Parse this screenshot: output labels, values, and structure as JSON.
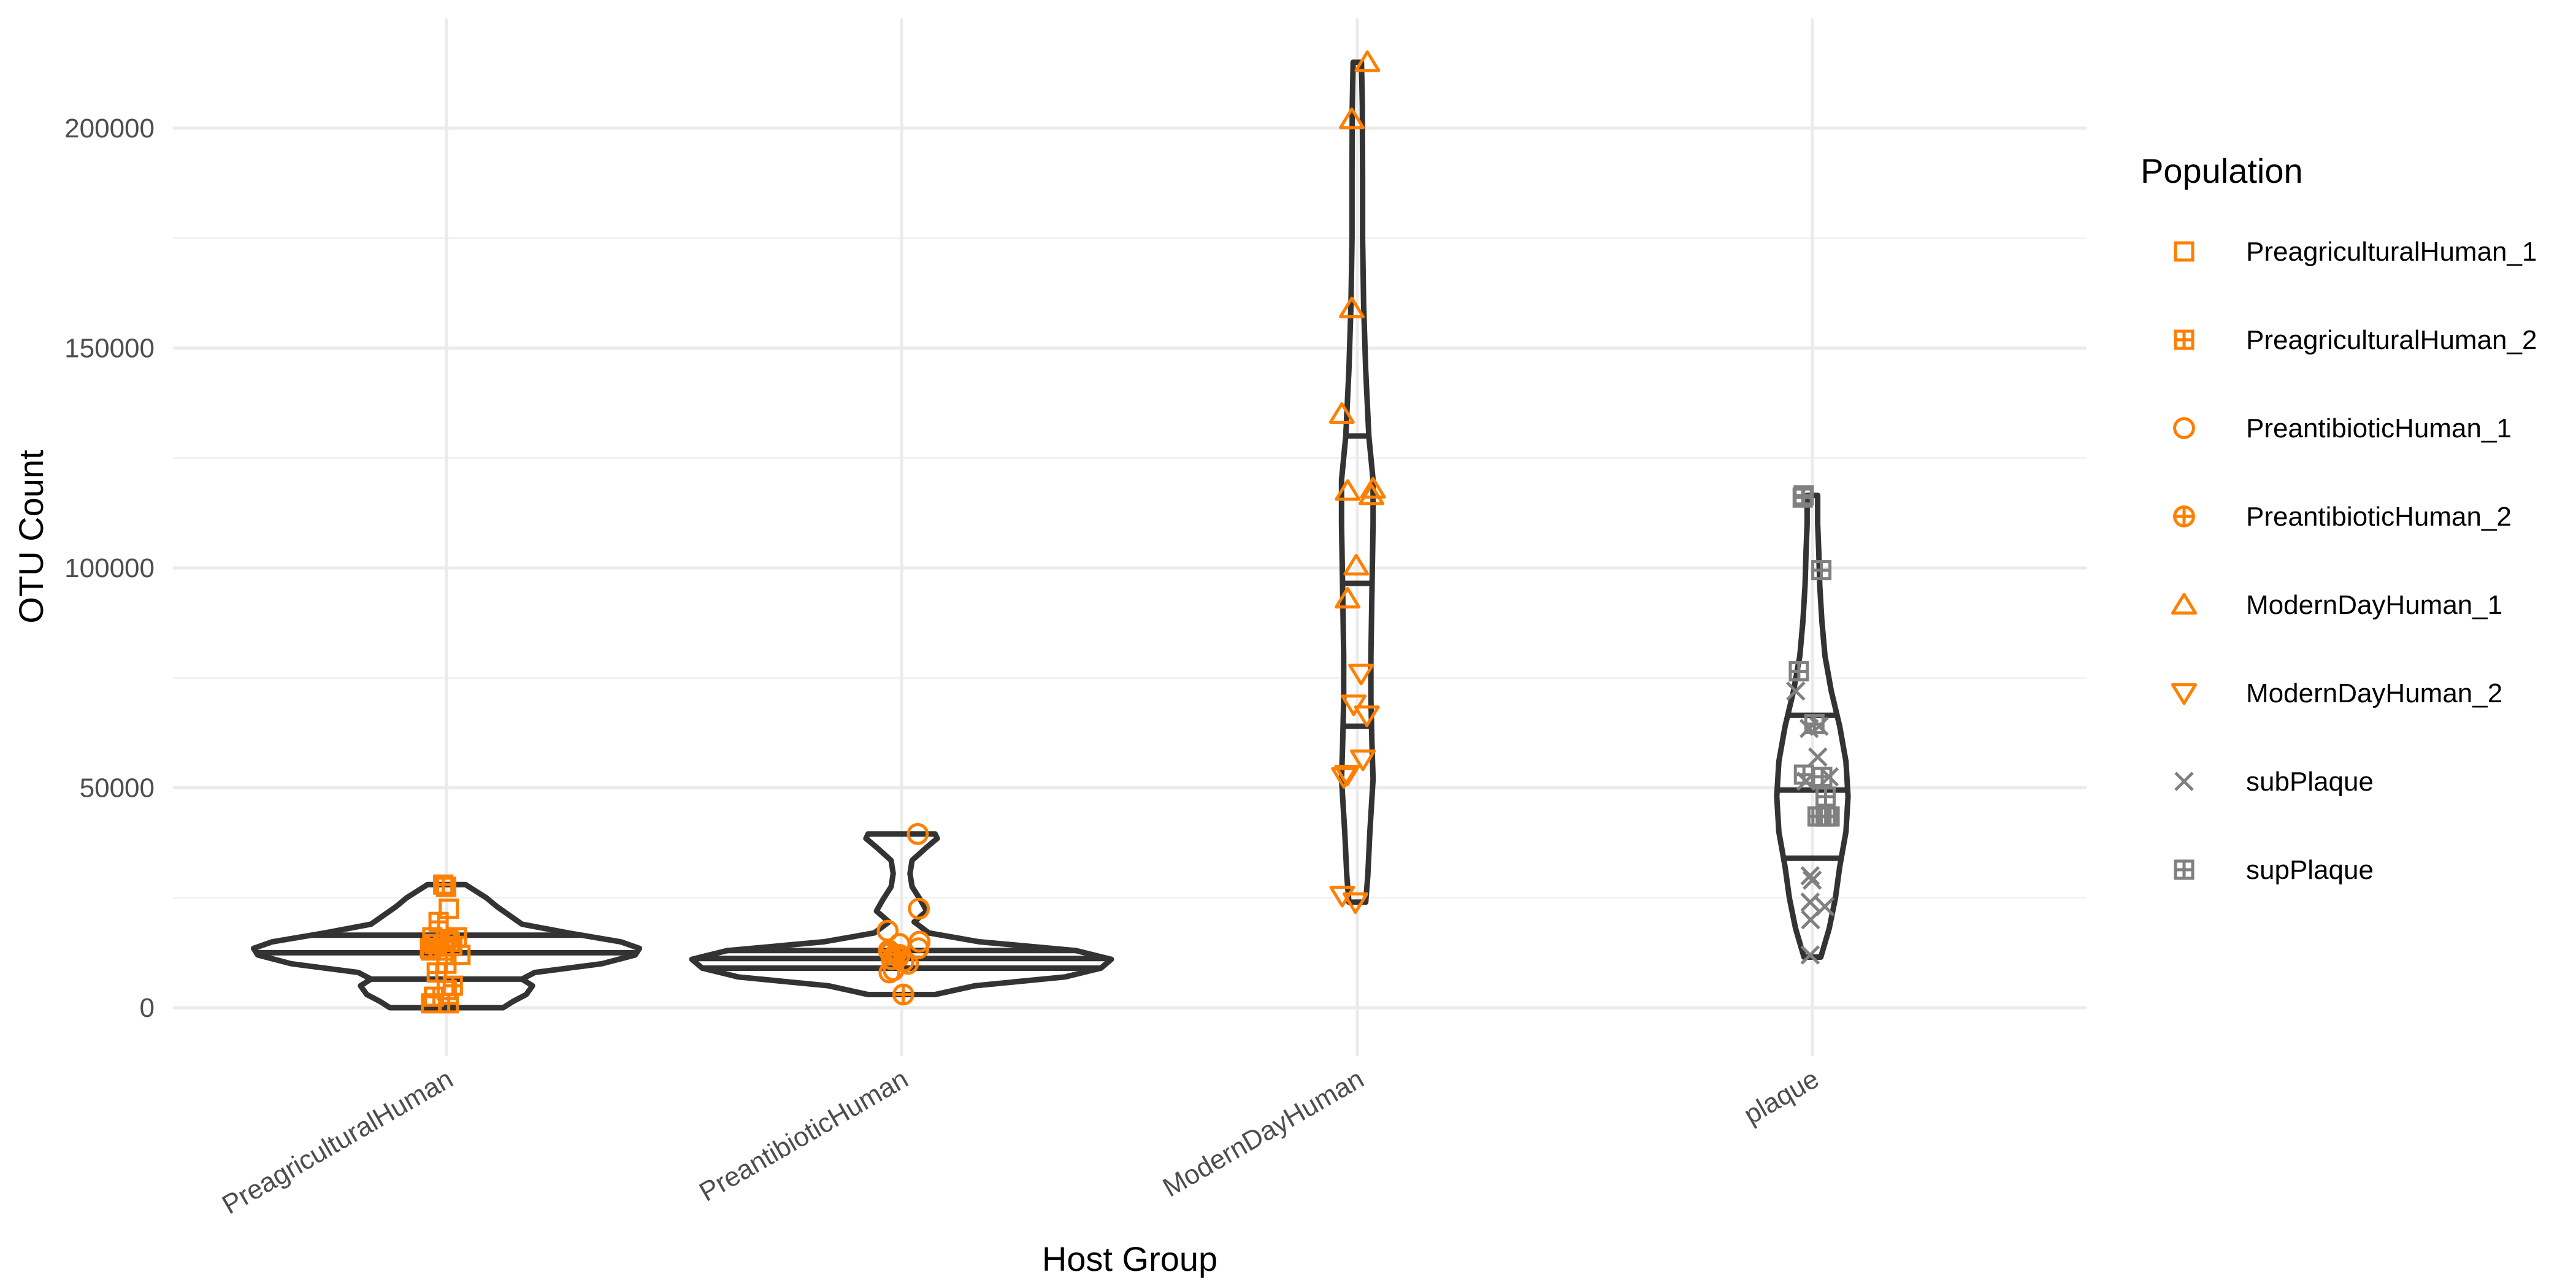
{
  "chart_data": {
    "type": "violin",
    "xlabel": "Host Group",
    "ylabel": "OTU Count",
    "categories": [
      "PreagriculturalHuman",
      "PreantibioticHuman",
      "ModernDayHuman",
      "plaque"
    ],
    "ylim": [
      -10000,
      225000
    ],
    "y_ticks": [
      0,
      50000,
      100000,
      150000,
      200000
    ],
    "y_tick_labels": [
      "0",
      "50000",
      "100000",
      "150000",
      "200000"
    ],
    "grid": true,
    "violin_color": "#333333",
    "violins": [
      {
        "category": "PreagriculturalHuman",
        "min": 0,
        "max": 28000,
        "quantiles": [
          6500,
          12500,
          16500
        ],
        "profile": [
          [
            0,
            0.27
          ],
          [
            1500,
            0.32
          ],
          [
            3000,
            0.38
          ],
          [
            5000,
            0.41
          ],
          [
            6500,
            0.36
          ],
          [
            8000,
            0.42
          ],
          [
            10000,
            0.74
          ],
          [
            12000,
            0.9
          ],
          [
            13500,
            0.92
          ],
          [
            15000,
            0.83
          ],
          [
            17000,
            0.58
          ],
          [
            19000,
            0.36
          ],
          [
            21000,
            0.3
          ],
          [
            23000,
            0.24
          ],
          [
            25000,
            0.19
          ],
          [
            26500,
            0.14
          ],
          [
            28000,
            0.09
          ]
        ]
      },
      {
        "category": "PreantibioticHuman",
        "min": 3000,
        "max": 39500,
        "quantiles": [
          9000,
          11200,
          13000
        ],
        "profile": [
          [
            3000,
            0.16
          ],
          [
            5000,
            0.35
          ],
          [
            7000,
            0.78
          ],
          [
            9000,
            0.95
          ],
          [
            11000,
            1.0
          ],
          [
            13000,
            0.83
          ],
          [
            15000,
            0.37
          ],
          [
            17000,
            0.13
          ],
          [
            19500,
            0.06
          ],
          [
            22000,
            0.12
          ],
          [
            24500,
            0.09
          ],
          [
            27500,
            0.05
          ],
          [
            30500,
            0.04
          ],
          [
            33500,
            0.05
          ],
          [
            36500,
            0.12
          ],
          [
            38500,
            0.17
          ],
          [
            39500,
            0.16
          ]
        ]
      },
      {
        "category": "ModernDayHuman",
        "min": 24000,
        "max": 215000,
        "quantiles": [
          64000,
          96500,
          130000
        ],
        "profile": [
          [
            24000,
            0.04
          ],
          [
            30000,
            0.05
          ],
          [
            40000,
            0.06
          ],
          [
            52000,
            0.075
          ],
          [
            60000,
            0.07
          ],
          [
            70000,
            0.065
          ],
          [
            80000,
            0.065
          ],
          [
            95000,
            0.07
          ],
          [
            110000,
            0.075
          ],
          [
            120000,
            0.075
          ],
          [
            130000,
            0.055
          ],
          [
            145000,
            0.04
          ],
          [
            160000,
            0.03
          ],
          [
            175000,
            0.025
          ],
          [
            190000,
            0.025
          ],
          [
            205000,
            0.024
          ],
          [
            215000,
            0.02
          ]
        ]
      },
      {
        "category": "plaque",
        "min": 11500,
        "max": 116500,
        "quantiles": [
          34000,
          49500,
          66500
        ],
        "profile": [
          [
            11500,
            0.04
          ],
          [
            18000,
            0.08
          ],
          [
            25000,
            0.11
          ],
          [
            32000,
            0.13
          ],
          [
            40000,
            0.16
          ],
          [
            48000,
            0.17
          ],
          [
            56000,
            0.16
          ],
          [
            64000,
            0.13
          ],
          [
            72000,
            0.09
          ],
          [
            80000,
            0.06
          ],
          [
            88000,
            0.045
          ],
          [
            96000,
            0.035
          ],
          [
            104000,
            0.03
          ],
          [
            110000,
            0.025
          ],
          [
            116500,
            0.025
          ]
        ]
      }
    ],
    "legend": {
      "title": "Population",
      "position": "right",
      "entries": [
        {
          "label": "PreagriculturalHuman_1",
          "shape": "square",
          "color": "#FF7F00"
        },
        {
          "label": "PreagriculturalHuman_2",
          "shape": "square-plus",
          "color": "#FF7F00"
        },
        {
          "label": "PreantibioticHuman_1",
          "shape": "circle",
          "color": "#FF7F00"
        },
        {
          "label": "PreantibioticHuman_2",
          "shape": "circle-plus",
          "color": "#FF7F00"
        },
        {
          "label": "ModernDayHuman_1",
          "shape": "triangle-up",
          "color": "#FF7F00"
        },
        {
          "label": "ModernDayHuman_2",
          "shape": "triangle-down",
          "color": "#FF7F00"
        },
        {
          "label": "subPlaque",
          "shape": "cross",
          "color": "#808080"
        },
        {
          "label": "supPlaque",
          "shape": "square-plus",
          "color": "#808080"
        }
      ]
    },
    "points": [
      {
        "series": "PreagriculturalHuman_1",
        "category": "PreagriculturalHuman",
        "values": [
          27500,
          22500,
          16000,
          14500,
          13000,
          4000,
          1000,
          12000,
          15000
        ]
      },
      {
        "series": "PreagriculturalHuman_2",
        "category": "PreagriculturalHuman",
        "values": [
          28000,
          19500,
          16000,
          14000,
          13000,
          10000,
          8000,
          5000,
          2500,
          1000,
          15500,
          14500,
          13500
        ]
      },
      {
        "series": "PreantibioticHuman_1",
        "category": "PreantibioticHuman",
        "values": [
          39500,
          22500,
          17500,
          14500,
          13500,
          12500,
          11500,
          10500,
          10000,
          8500,
          8000,
          15000,
          12000,
          11000
        ]
      },
      {
        "series": "PreantibioticHuman_2",
        "category": "PreantibioticHuman",
        "values": [
          3000,
          12000,
          13000
        ]
      },
      {
        "series": "ModernDayHuman_1",
        "category": "ModernDayHuman",
        "values": [
          215000,
          202000,
          159000,
          135000,
          118000,
          117500,
          116500,
          100500,
          93000
        ]
      },
      {
        "series": "ModernDayHuman_2",
        "category": "ModernDayHuman",
        "values": [
          76000,
          69000,
          66500,
          56500,
          52500,
          53000,
          24000,
          25500
        ]
      },
      {
        "series": "subPlaque",
        "category": "plaque",
        "values": [
          72000,
          63500,
          64000,
          57000,
          52500,
          51500,
          30000,
          29000,
          24000,
          23000,
          20000,
          12000
        ]
      },
      {
        "series": "supPlaque",
        "category": "plaque",
        "values": [
          116500,
          116000,
          99500,
          76500,
          53000,
          52500,
          48000,
          43500,
          43500,
          43500,
          43500,
          43500,
          64500
        ]
      }
    ]
  }
}
